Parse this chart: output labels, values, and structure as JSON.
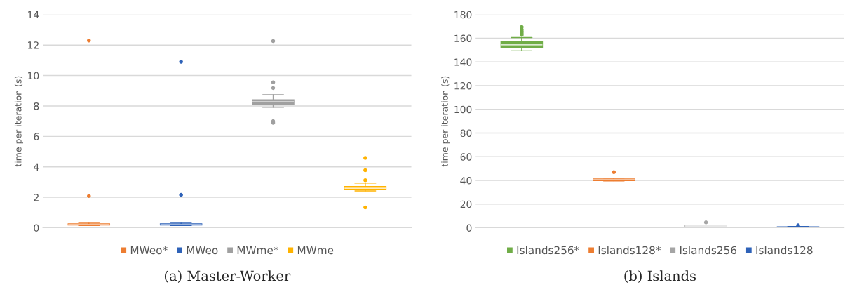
{
  "chart_data": [
    {
      "type": "box",
      "ylabel": "time per iteration (s)",
      "categories": [
        null,
        null,
        null,
        null
      ],
      "ylim": [
        0,
        14
      ],
      "yticks": [
        0,
        2,
        4,
        6,
        8,
        10,
        12,
        14
      ],
      "grid": "y",
      "legend": "bottom",
      "annotations": [
        "(a) Master-Worker"
      ],
      "series": [
        {
          "name": "MWeo*",
          "color": "#ed7d31",
          "boxes": [
            {
              "low": 0.15,
              "q1": 0.18,
              "median": 0.2,
              "q3": 0.25,
              "high": 0.35,
              "outliers": [
                2.09,
                12.3
              ]
            },
            null,
            null,
            null
          ]
        },
        {
          "name": "MWeo",
          "color": "#2e62b8",
          "boxes": [
            null,
            {
              "low": 0.15,
              "q1": 0.18,
              "median": 0.2,
              "q3": 0.25,
              "high": 0.35,
              "outliers": [
                2.16,
                10.9
              ]
            },
            null,
            null
          ]
        },
        {
          "name": "MWme*",
          "color": "#a0a0a0",
          "boxes": [
            null,
            null,
            {
              "low": 7.91,
              "q1": 8.12,
              "median": 8.27,
              "q3": 8.4,
              "high": 8.74,
              "outliers": [
                6.89,
                7.0,
                9.18,
                9.55,
                12.26
              ]
            },
            null
          ]
        },
        {
          "name": "MWme",
          "color": "#ffb300",
          "boxes": [
            null,
            null,
            null,
            {
              "low": 2.42,
              "q1": 2.5,
              "median": 2.6,
              "q3": 2.71,
              "high": 2.93,
              "outliers": [
                1.34,
                3.12,
                3.78,
                4.59
              ]
            }
          ]
        }
      ]
    },
    {
      "type": "box",
      "ylabel": "time per iteration (s)",
      "categories": [
        null,
        null,
        null,
        null
      ],
      "ylim": [
        0,
        180
      ],
      "yticks": [
        0,
        20,
        40,
        60,
        80,
        100,
        120,
        140,
        160,
        180
      ],
      "grid": "y",
      "legend": "bottom",
      "annotations": [
        "(b) Islands"
      ],
      "series": [
        {
          "name": "Islands256*",
          "color": "#70ad47",
          "boxes": [
            {
              "low": 149.4,
              "q1": 152.3,
              "median": 154.5,
              "q3": 156.9,
              "high": 160.6,
              "outliers": [
                162.9,
                164.5,
                166,
                167.5,
                169.5
              ]
            },
            null,
            null,
            null
          ]
        },
        {
          "name": "Islands128*",
          "color": "#ed7d31",
          "boxes": [
            null,
            {
              "low": 39.5,
              "q1": 39.8,
              "median": 40.5,
              "q3": 41.2,
              "high": 42,
              "outliers": [
                47
              ]
            },
            null,
            null
          ]
        },
        {
          "name": "Islands256",
          "color": "#a5a5a5",
          "boxes": [
            null,
            null,
            {
              "low": 1,
              "q1": 1.2,
              "median": 1.5,
              "q3": 1.8,
              "high": 2,
              "outliers": [
                4.5
              ]
            },
            null
          ]
        },
        {
          "name": "Islands128",
          "color": "#2e62b8",
          "boxes": [
            null,
            null,
            null,
            {
              "low": 0.2,
              "q1": 0.4,
              "median": 0.5,
              "q3": 0.7,
              "high": 1,
              "outliers": [
                2
              ]
            }
          ]
        }
      ]
    }
  ]
}
